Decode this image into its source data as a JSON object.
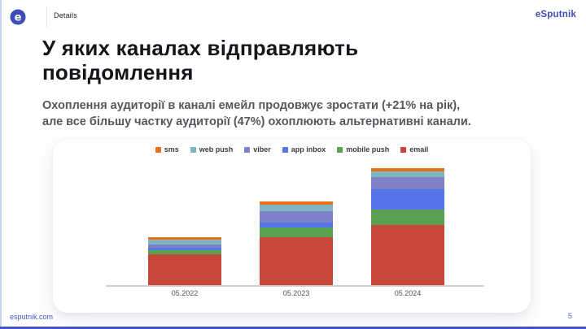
{
  "slide": {
    "header": {
      "details_label": "Details",
      "brand": "eSputnik"
    },
    "title_line1": "У яких каналах відправляють",
    "title_line2": "повідомлення",
    "subtitle_line1": "Охоплення аудиторії в каналі емейл продовжує зростати (+21% на рік),",
    "subtitle_line2": "але все більшу частку аудиторії (47%) охоплюють альтернативні канали.",
    "footer": {
      "site": "esputnik.com",
      "page_number": "5"
    }
  },
  "colors": {
    "brand_blue": "#3d4cb4",
    "accent_bottom": "#4254c5",
    "sms_orange": "#e8721c",
    "web_push_teal": "#7db6c0",
    "viber_purple": "#7e80c8",
    "app_inbox_blue": "#5574ea",
    "mobile_push_green": "#5aa151",
    "email_red": "#c9463a"
  },
  "chart_data": {
    "type": "bar",
    "stacked": true,
    "title": "",
    "categories": [
      "05.2022",
      "05.2023",
      "05.2024"
    ],
    "units": "relative units (no y-axis shown; segment sizes estimated from bar pixel heights)",
    "legend_position": "top",
    "grid": false,
    "legend": [
      {
        "label": "sms",
        "color": "#e8721c"
      },
      {
        "label": "web push",
        "color": "#7db6c0"
      },
      {
        "label": "viber",
        "color": "#7e80c8"
      },
      {
        "label": "app inbox",
        "color": "#5574ea"
      },
      {
        "label": "mobile push",
        "color": "#5aa151"
      },
      {
        "label": "email",
        "color": "#c9463a"
      }
    ],
    "stack_order_bottom_to_top": [
      "email",
      "mobile push",
      "app inbox",
      "viber",
      "web push",
      "sms"
    ],
    "series": [
      {
        "name": "sms",
        "color": "#e8721c",
        "values": [
          2.5,
          4,
          4
        ]
      },
      {
        "name": "web push",
        "color": "#7db6c0",
        "values": [
          6,
          8,
          7
        ]
      },
      {
        "name": "viber",
        "color": "#7e80c8",
        "values": [
          4,
          14,
          15
        ]
      },
      {
        "name": "app inbox",
        "color": "#5574ea",
        "values": [
          3.5,
          6,
          25
        ]
      },
      {
        "name": "mobile push",
        "color": "#5aa151",
        "values": [
          4.5,
          12,
          18.5
        ]
      },
      {
        "name": "email",
        "color": "#c9463a",
        "values": [
          38.5,
          59,
          74.5
        ]
      }
    ]
  }
}
